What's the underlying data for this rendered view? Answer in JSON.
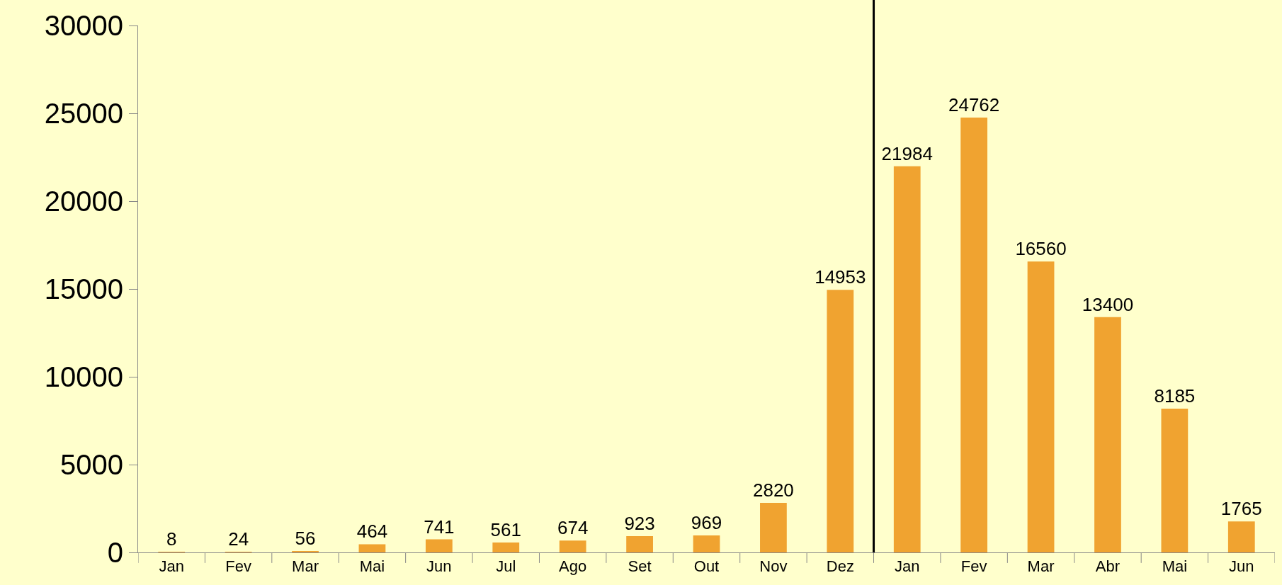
{
  "chart_data": {
    "type": "bar",
    "categories": [
      "Jan",
      "Fev",
      "Mar",
      "Mai",
      "Jun",
      "Jul",
      "Ago",
      "Set",
      "Out",
      "Nov",
      "Dez",
      "Jan",
      "Fev",
      "Mar",
      "Abr",
      "Mai",
      "Jun"
    ],
    "values": [
      8,
      24,
      56,
      464,
      741,
      561,
      674,
      923,
      969,
      2820,
      14953,
      21984,
      24762,
      16560,
      13400,
      8185,
      1765
    ],
    "color": "#f0a330",
    "ylim": [
      0,
      30000
    ],
    "yticks": [
      0,
      5000,
      10000,
      15000,
      20000,
      25000,
      30000
    ],
    "data_labels": true,
    "grid": false,
    "legend": false
  }
}
